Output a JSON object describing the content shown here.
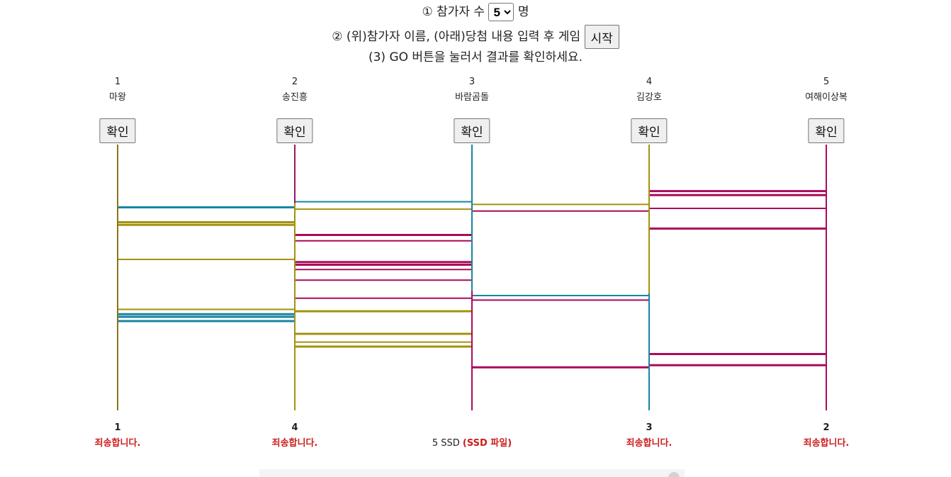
{
  "instructions": {
    "step1_prefix": "① 참가자 수",
    "participant_count": "5",
    "step1_suffix": "명",
    "step2_text": "② (위)참가자 이름, (아래)당첨 내용 입력 후 게임",
    "start_label": "시작",
    "step3_text": "(3) GO 버튼을 눌러서 결과를 확인하세요."
  },
  "check_label": "확인",
  "participants": [
    {
      "number": "1",
      "name": "마왕",
      "color": "#877519"
    },
    {
      "number": "2",
      "name": "송진흥",
      "color": "#9a1565"
    },
    {
      "number": "3",
      "name": "바람곰돌",
      "color": "#1a84a3"
    },
    {
      "number": "4",
      "name": "김강호",
      "color": "#a18f0a"
    },
    {
      "number": "5",
      "name": "여해이상복",
      "color": "#a90b5a"
    }
  ],
  "results": [
    {
      "number": "1",
      "text": "죄송합니다.",
      "detail": "",
      "style": "fail"
    },
    {
      "number": "4",
      "text": "죄송합니다.",
      "detail": "",
      "style": "fail"
    },
    {
      "number": "",
      "text": "5 SSD",
      "detail": "(SSD 파일)",
      "style": "prize"
    },
    {
      "number": "3",
      "text": "죄송합니다.",
      "detail": "",
      "style": "fail"
    },
    {
      "number": "2",
      "text": "죄송합니다.",
      "detail": "",
      "style": "fail"
    }
  ],
  "ladder": {
    "colors": {
      "gold": "#a3920f",
      "olive": "#877519",
      "teal": "#1a84a3",
      "magenta": "#a90b5a",
      "purple": "#9a1565"
    },
    "verticals": [
      {
        "segments": [
          {
            "from": 0,
            "to": 1,
            "color": "olive"
          }
        ]
      },
      {
        "segments": [
          {
            "from": 0,
            "to": 0.22,
            "color": "purple"
          },
          {
            "from": 0.22,
            "to": 1,
            "color": "gold"
          }
        ]
      },
      {
        "segments": [
          {
            "from": 0,
            "to": 0.55,
            "color": "teal"
          },
          {
            "from": 0.55,
            "to": 1,
            "color": "magenta"
          }
        ]
      },
      {
        "segments": [
          {
            "from": 0,
            "to": 0.56,
            "color": "gold"
          },
          {
            "from": 0.56,
            "to": 1,
            "color": "teal"
          }
        ]
      },
      {
        "segments": [
          {
            "from": 0,
            "to": 1,
            "color": "magenta"
          }
        ]
      }
    ],
    "rungs": [
      {
        "gap": 0,
        "level": 0.236,
        "color": "teal",
        "bold": true
      },
      {
        "gap": 0,
        "level": 0.292,
        "color": "gold",
        "bold": true
      },
      {
        "gap": 0,
        "level": 0.302,
        "color": "gold",
        "bold": true
      },
      {
        "gap": 0,
        "level": 0.432,
        "color": "gold",
        "bold": false
      },
      {
        "gap": 0,
        "level": 0.62,
        "color": "gold",
        "bold": false
      },
      {
        "gap": 0,
        "level": 0.638,
        "color": "teal",
        "bold": true
      },
      {
        "gap": 0,
        "level": 0.648,
        "color": "teal",
        "bold": true
      },
      {
        "gap": 0,
        "level": 0.664,
        "color": "teal",
        "bold": true
      },
      {
        "gap": 1,
        "level": 0.215,
        "color": "teal",
        "bold": false
      },
      {
        "gap": 1,
        "level": 0.243,
        "color": "gold",
        "bold": false
      },
      {
        "gap": 1,
        "level": 0.34,
        "color": "magenta",
        "bold": true
      },
      {
        "gap": 1,
        "level": 0.362,
        "color": "magenta",
        "bold": false
      },
      {
        "gap": 1,
        "level": 0.442,
        "color": "magenta",
        "bold": true
      },
      {
        "gap": 1,
        "level": 0.452,
        "color": "magenta",
        "bold": true
      },
      {
        "gap": 1,
        "level": 0.47,
        "color": "magenta",
        "bold": false
      },
      {
        "gap": 1,
        "level": 0.51,
        "color": "magenta",
        "bold": false
      },
      {
        "gap": 1,
        "level": 0.578,
        "color": "magenta",
        "bold": false
      },
      {
        "gap": 1,
        "level": 0.627,
        "color": "gold",
        "bold": true
      },
      {
        "gap": 1,
        "level": 0.712,
        "color": "gold",
        "bold": true
      },
      {
        "gap": 1,
        "level": 0.743,
        "color": "gold",
        "bold": false
      },
      {
        "gap": 1,
        "level": 0.76,
        "color": "gold",
        "bold": true
      },
      {
        "gap": 2,
        "level": 0.225,
        "color": "gold",
        "bold": false
      },
      {
        "gap": 2,
        "level": 0.25,
        "color": "magenta",
        "bold": false
      },
      {
        "gap": 2,
        "level": 0.568,
        "color": "teal",
        "bold": false
      },
      {
        "gap": 2,
        "level": 0.585,
        "color": "magenta",
        "bold": false
      },
      {
        "gap": 2,
        "level": 0.838,
        "color": "magenta",
        "bold": true
      },
      {
        "gap": 3,
        "level": 0.175,
        "color": "magenta",
        "bold": true
      },
      {
        "gap": 3,
        "level": 0.19,
        "color": "magenta",
        "bold": true
      },
      {
        "gap": 3,
        "level": 0.24,
        "color": "magenta",
        "bold": false
      },
      {
        "gap": 3,
        "level": 0.316,
        "color": "magenta",
        "bold": true
      },
      {
        "gap": 3,
        "level": 0.788,
        "color": "magenta",
        "bold": true
      },
      {
        "gap": 3,
        "level": 0.83,
        "color": "magenta",
        "bold": true
      }
    ]
  }
}
